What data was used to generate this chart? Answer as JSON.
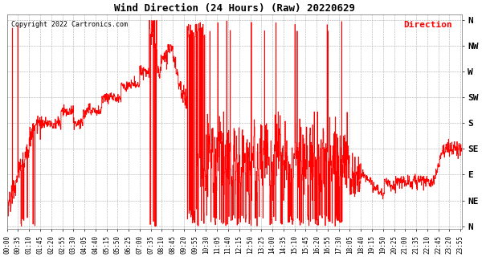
{
  "title": "Wind Direction (24 Hours) (Raw) 20220629",
  "copyright": "Copyright 2022 Cartronics.com",
  "legend_label": "Direction",
  "legend_color": "#ff0000",
  "copyright_color": "#000000",
  "line_color": "#ff0000",
  "bg_color": "#ffffff",
  "grid_color": "#aaaaaa",
  "ytick_labels": [
    "N",
    "NE",
    "E",
    "SE",
    "S",
    "SW",
    "W",
    "NW",
    "N"
  ],
  "ytick_values": [
    0,
    45,
    90,
    135,
    180,
    225,
    270,
    315,
    360
  ],
  "ylim": [
    -5,
    370
  ],
  "xtick_labels": [
    "00:00",
    "00:35",
    "01:10",
    "01:45",
    "02:20",
    "02:55",
    "03:30",
    "04:05",
    "04:40",
    "05:15",
    "05:50",
    "06:25",
    "07:00",
    "07:35",
    "08:10",
    "08:45",
    "09:20",
    "09:55",
    "10:30",
    "11:05",
    "11:40",
    "12:15",
    "12:50",
    "13:25",
    "14:00",
    "14:35",
    "15:10",
    "15:45",
    "16:20",
    "16:55",
    "17:30",
    "18:05",
    "18:40",
    "19:15",
    "19:50",
    "20:25",
    "21:00",
    "21:35",
    "22:10",
    "22:45",
    "23:20",
    "23:55"
  ]
}
